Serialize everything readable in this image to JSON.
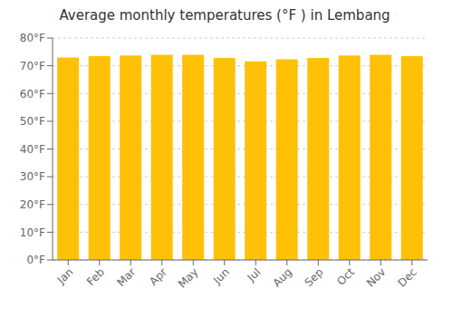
{
  "chart_data": {
    "type": "bar",
    "title": "Average monthly temperatures (°F ) in Lembang",
    "categories": [
      "Jan",
      "Feb",
      "Mar",
      "Apr",
      "May",
      "Jun",
      "Jul",
      "Aug",
      "Sep",
      "Oct",
      "Nov",
      "Dec"
    ],
    "values": [
      73.0,
      73.5,
      73.7,
      74.0,
      74.0,
      72.8,
      71.6,
      72.3,
      72.8,
      73.7,
      74.0,
      73.5
    ],
    "color": "#FFC107",
    "ylim": [
      0,
      80
    ],
    "yticks": [
      {
        "value": 0,
        "label": "0°F"
      },
      {
        "value": 10,
        "label": "10°F"
      },
      {
        "value": 20,
        "label": "20°F"
      },
      {
        "value": 30,
        "label": "30°F"
      },
      {
        "value": 40,
        "label": "40°F"
      },
      {
        "value": 50,
        "label": "50°F"
      },
      {
        "value": 60,
        "label": "60°F"
      },
      {
        "value": 70,
        "label": "70°F"
      },
      {
        "value": 80,
        "label": "80°F"
      }
    ],
    "grid": true
  }
}
